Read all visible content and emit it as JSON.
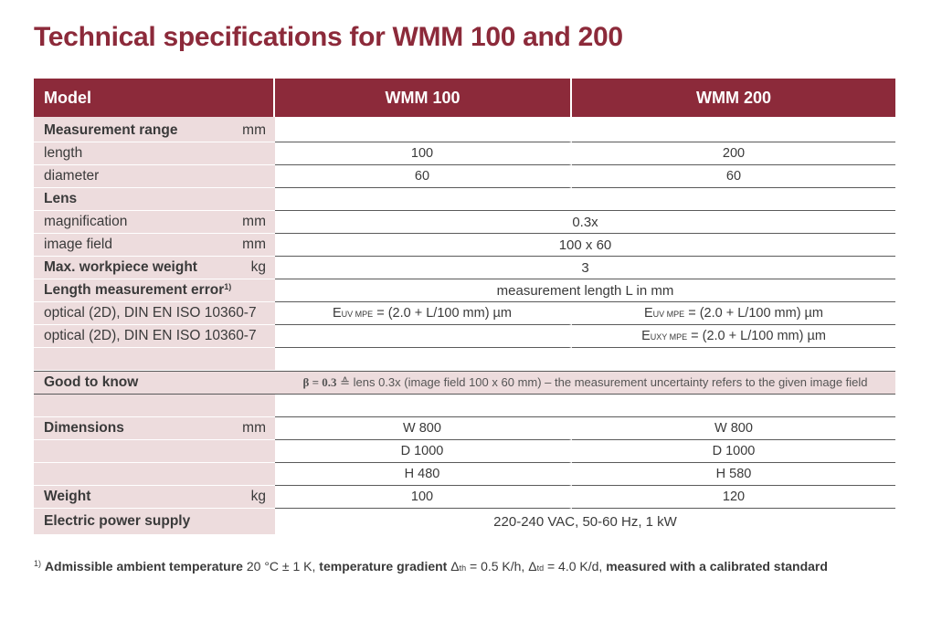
{
  "title": "Technical specifications for WMM 100 and 200",
  "header": {
    "model": "Model",
    "col1": "WMM 100",
    "col2": "WMM 200"
  },
  "rows": {
    "measurement_range": {
      "label": "Measurement range",
      "unit": "mm"
    },
    "length": {
      "label": "length",
      "v1": "100",
      "v2": "200"
    },
    "diameter": {
      "label": "diameter",
      "v1": "60",
      "v2": "60"
    },
    "lens": {
      "label": "Lens"
    },
    "magnification": {
      "label": "magnification",
      "unit": "mm",
      "value": "0.3x"
    },
    "image_field": {
      "label": "image field",
      "unit": "mm",
      "value": "100 x 60"
    },
    "max_weight": {
      "label": "Max. workpiece weight",
      "unit": "kg",
      "value": "3"
    },
    "length_error": {
      "label": "Length measurement error",
      "sup": "1)",
      "value": "measurement length L in mm"
    },
    "optical1": {
      "label": "optical (2D), DIN EN ISO 10360-7",
      "v1_prefix": "E",
      "v1_sub": "UV MPE",
      "v1_rest": " = (2.0 + L/100 mm) µm",
      "v2_prefix": "E",
      "v2_sub": "UV MPE",
      "v2_rest": " = (2.0 + L/100 mm) µm"
    },
    "optical2": {
      "label": "optical (2D), DIN EN ISO 10360-7",
      "v2_prefix": "E",
      "v2_sub": "UXY MPE",
      "v2_rest": " = (2.0 + L/100 mm) µm"
    },
    "good_to_know": {
      "label": "Good to know",
      "beta": "β = 0.3",
      "symbol": "≙",
      "text": " lens 0.3x (image field 100 x 60 mm) – the measurement uncertainty refers to the given image field"
    },
    "dimensions": {
      "label": "Dimensions",
      "unit": "mm",
      "w1": "W 800",
      "w2": "W 800",
      "d1": "D 1000",
      "d2": "D 1000",
      "h1": "H 480",
      "h2": "H 580"
    },
    "weight": {
      "label": "Weight",
      "unit": "kg",
      "v1": "100",
      "v2": "120"
    },
    "power": {
      "label": "Electric power supply",
      "value": "220-240 VAC, 50-60 Hz, 1 kW"
    }
  },
  "footnote": {
    "marker": "1)",
    "part1": "Admissible ambient temperature",
    "part2": " 20 °C ± 1 K, ",
    "part3": "temperature gradient",
    "part4a": " Δ",
    "sub1": "th",
    "part4b": " = 0.5 K/h, Δ",
    "sub2": "td",
    "part4c": " = 4.0 K/d, ",
    "part5": "measured with a calibrated standard"
  }
}
